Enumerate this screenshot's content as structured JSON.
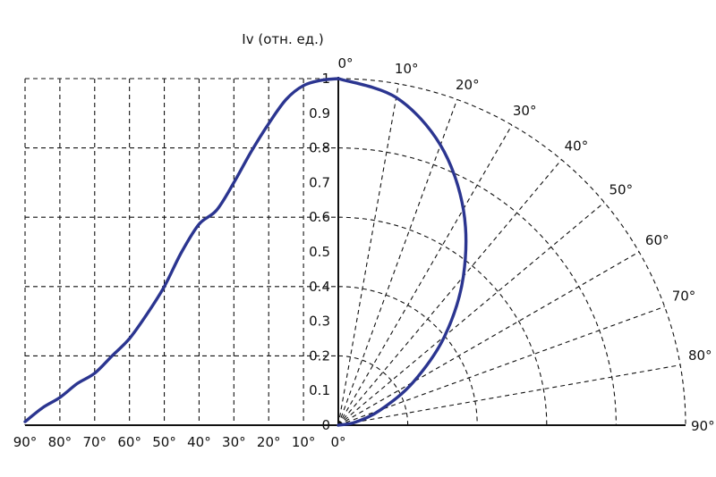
{
  "chart_data": {
    "type": "line",
    "subtype": "polar-luminous-intensity",
    "ylabel": "Iv (отн. ед.)",
    "y_ticks": [
      "0",
      "0.1",
      "0.2",
      "0.3",
      "0.4",
      "0.5",
      "0.6",
      "0.7",
      "0.8",
      "0.9",
      "1"
    ],
    "ylim": [
      0,
      1
    ],
    "bottom_angle_labels": [
      "90°",
      "80°",
      "70°",
      "60°",
      "50°",
      "40°",
      "30°",
      "20°",
      "10°",
      "0°"
    ],
    "polar_angle_labels": [
      "0°",
      "10°",
      "20°",
      "30°",
      "40°",
      "50°",
      "60°",
      "70°",
      "80°",
      "90°"
    ],
    "polar_rings": [
      0.2,
      0.4,
      0.6,
      0.8,
      1.0
    ],
    "grid": true,
    "colors": {
      "curve": "#2b3590",
      "grid": "#111111"
    },
    "series": [
      {
        "angles_deg": [
          0,
          10,
          20,
          30,
          40,
          50,
          60,
          70,
          80,
          90
        ],
        "polar_values": [
          1.0,
          0.96,
          0.86,
          0.72,
          0.56,
          0.4,
          0.25,
          0.13,
          0.05,
          0.0
        ]
      },
      {
        "angles_deg": [
          0,
          5,
          10,
          15,
          20,
          25,
          30,
          35,
          40,
          45,
          50,
          55,
          60,
          65,
          70,
          75,
          80,
          85,
          90
        ],
        "cartesian_values": [
          1.0,
          0.995,
          0.98,
          0.94,
          0.87,
          0.79,
          0.7,
          0.62,
          0.58,
          0.5,
          0.4,
          0.32,
          0.25,
          0.2,
          0.15,
          0.12,
          0.08,
          0.05,
          0.01
        ]
      }
    ]
  }
}
